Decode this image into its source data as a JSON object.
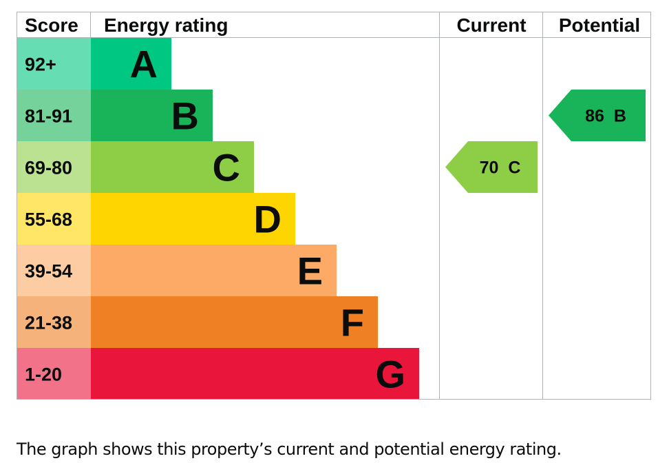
{
  "chart_data": {
    "type": "bar",
    "headers": {
      "score": "Score",
      "rating": "Energy rating",
      "current": "Current",
      "potential": "Potential"
    },
    "bands": [
      {
        "score": "92+",
        "letter": "A",
        "color": "#00c781",
        "score_bg": "#66ddb3"
      },
      {
        "score": "81-91",
        "letter": "B",
        "color": "#19b459",
        "score_bg": "#75d29b"
      },
      {
        "score": "69-80",
        "letter": "C",
        "color": "#8dce46",
        "score_bg": "#bbe290"
      },
      {
        "score": "55-68",
        "letter": "D",
        "color": "#ffd500",
        "score_bg": "#ffe666"
      },
      {
        "score": "39-54",
        "letter": "E",
        "color": "#fcaa65",
        "score_bg": "#fdcca3"
      },
      {
        "score": "21-38",
        "letter": "F",
        "color": "#ef8023",
        "score_bg": "#f5b37b"
      },
      {
        "score": "1-20",
        "letter": "G",
        "color": "#e9153b",
        "score_bg": "#f27389"
      }
    ],
    "current": {
      "value": 70,
      "letter": "C",
      "color": "#8dce46"
    },
    "potential": {
      "value": 86,
      "letter": "B",
      "color": "#19b459"
    }
  },
  "caption": "The graph shows this property’s current and potential energy rating."
}
